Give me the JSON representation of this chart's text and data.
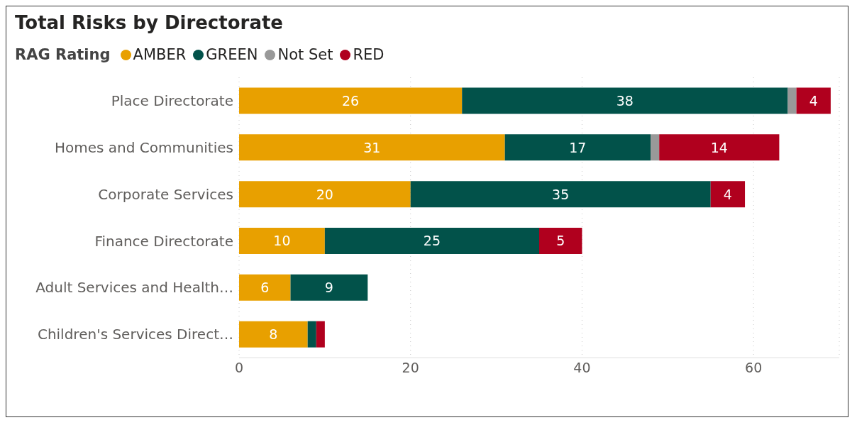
{
  "chart_data": {
    "type": "bar",
    "orientation": "horizontal",
    "stacked": true,
    "title": "Total Risks by Directorate",
    "legend_title": "RAG Rating",
    "legend": "top left",
    "grid": "x",
    "categories": [
      "Place Directorate",
      "Homes and Communities",
      "Corporate Services",
      "Finance Directorate",
      "Adult Services and Health…",
      "Children's Services Direct…"
    ],
    "series": [
      {
        "name": "AMBER",
        "color": "#e8a000",
        "values": [
          26,
          31,
          20,
          10,
          6,
          8
        ],
        "value_labels": [
          "26",
          "31",
          "20",
          "10",
          "6",
          "8"
        ]
      },
      {
        "name": "GREEN",
        "color": "#02524a",
        "values": [
          38,
          17,
          35,
          25,
          9,
          1
        ],
        "value_labels": [
          "38",
          "17",
          "35",
          "25",
          "9",
          null
        ]
      },
      {
        "name": "Not Set",
        "color": "#999999",
        "values": [
          1,
          1,
          null,
          null,
          null,
          null
        ],
        "value_labels": [
          null,
          null,
          null,
          null,
          null,
          null
        ]
      },
      {
        "name": "RED",
        "color": "#b0001e",
        "values": [
          4,
          14,
          4,
          5,
          null,
          1
        ],
        "value_labels": [
          "4",
          "14",
          "4",
          "5",
          null,
          null
        ]
      }
    ],
    "xlim": [
      0,
      70
    ],
    "xticks": [
      0,
      20,
      40,
      60
    ]
  }
}
